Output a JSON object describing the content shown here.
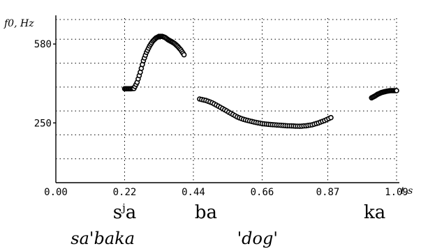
{
  "chart_data": {
    "type": "scatter",
    "ylabel": "f0, Hz",
    "xlabel": "t,s",
    "x_ticks": [
      "0.00",
      "0.22",
      "0.44",
      "0.66",
      "0.87",
      "1.09"
    ],
    "y_ticks": [
      {
        "value": 250,
        "label": "250"
      },
      {
        "value": 580,
        "label": "580"
      }
    ],
    "xlim": [
      0,
      1.09
    ],
    "ylim": [
      0,
      700
    ],
    "grid": true,
    "series": [
      {
        "values": [
          [
            0.22,
            393
          ],
          [
            0.23,
            393
          ],
          [
            0.24,
            393
          ],
          [
            0.25,
            394
          ],
          [
            0.26,
            420
          ],
          [
            0.27,
            462
          ],
          [
            0.28,
            510
          ],
          [
            0.29,
            545
          ],
          [
            0.3,
            572
          ],
          [
            0.31,
            592
          ],
          [
            0.32,
            605
          ],
          [
            0.33,
            612
          ],
          [
            0.34,
            612
          ],
          [
            0.35,
            607
          ],
          [
            0.36,
            597
          ],
          [
            0.37,
            590
          ],
          [
            0.38,
            582
          ],
          [
            0.39,
            570
          ],
          [
            0.4,
            555
          ],
          [
            0.41,
            535
          ]
        ]
      },
      {
        "values": [
          [
            0.46,
            350
          ],
          [
            0.48,
            344
          ],
          [
            0.5,
            334
          ],
          [
            0.52,
            320
          ],
          [
            0.54,
            305
          ],
          [
            0.56,
            290
          ],
          [
            0.58,
            275
          ],
          [
            0.6,
            265
          ],
          [
            0.62,
            258
          ],
          [
            0.64,
            252
          ],
          [
            0.66,
            247
          ],
          [
            0.68,
            244
          ],
          [
            0.7,
            242
          ],
          [
            0.72,
            240
          ],
          [
            0.74,
            238
          ],
          [
            0.76,
            237
          ],
          [
            0.78,
            236
          ],
          [
            0.8,
            238
          ],
          [
            0.82,
            242
          ],
          [
            0.84,
            250
          ],
          [
            0.86,
            260
          ],
          [
            0.88,
            272
          ]
        ]
      },
      {
        "values": [
          [
            1.01,
            355
          ],
          [
            1.02,
            362
          ],
          [
            1.03,
            370
          ],
          [
            1.04,
            376
          ],
          [
            1.05,
            380
          ],
          [
            1.06,
            383
          ],
          [
            1.07,
            385
          ],
          [
            1.08,
            385
          ],
          [
            1.09,
            385
          ]
        ]
      }
    ],
    "annotations": {
      "syllables": [
        {
          "base": "s",
          "sup": "j",
          "vowel": "a",
          "x": 0.22
        },
        {
          "text": "ba",
          "x": 0.48
        },
        {
          "text": "ka",
          "x": 1.02
        }
      ],
      "gloss": [
        {
          "text": "sa'baka",
          "x": 0.15
        },
        {
          "text": "'dog'",
          "x": 0.645
        }
      ]
    }
  }
}
